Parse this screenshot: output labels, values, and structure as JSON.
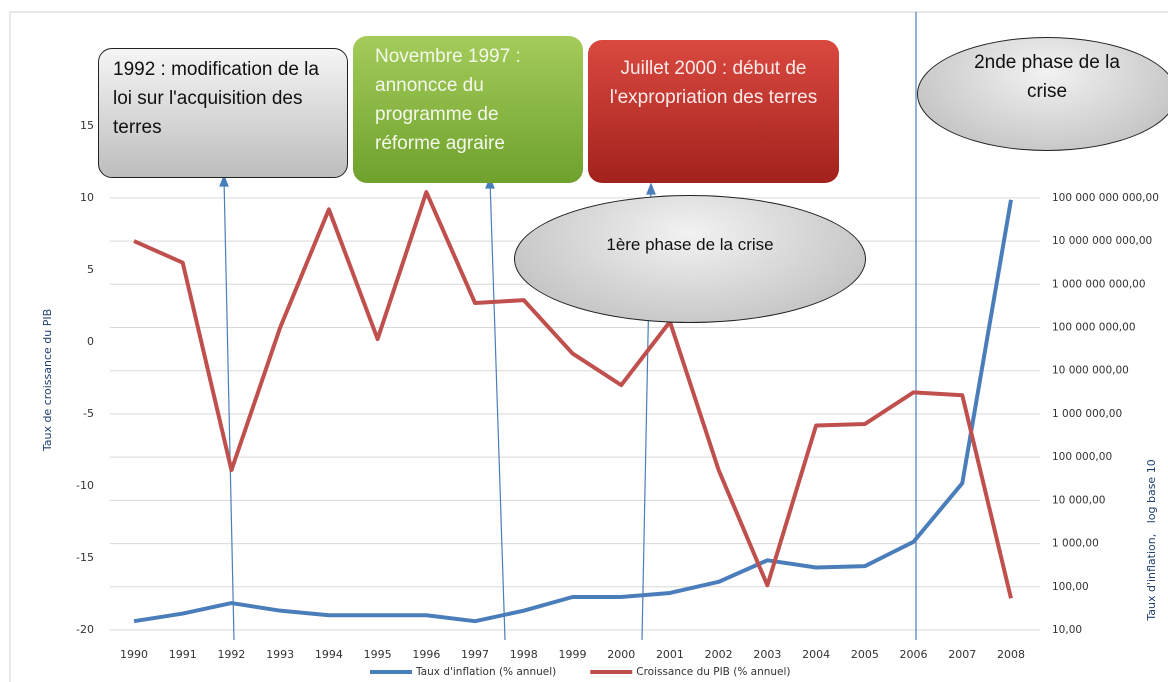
{
  "chart_data": {
    "type": "line",
    "categories": [
      "1990",
      "1991",
      "1992",
      "1993",
      "1994",
      "1995",
      "1996",
      "1997",
      "1998",
      "1999",
      "2000",
      "2001",
      "2002",
      "2003",
      "2004",
      "2005",
      "2006",
      "2007",
      "2008"
    ],
    "series": [
      {
        "name": "Taux d'inflation (% annuel)",
        "color": "#4a7ebb",
        "axis": "y2",
        "values": [
          16,
          24,
          42,
          28,
          22,
          22,
          22,
          16,
          28,
          58,
          58,
          72,
          130,
          410,
          280,
          300,
          1100,
          25000,
          90000000000
        ]
      },
      {
        "name": "Croissance du PIB (% annuel)",
        "color": "#c0504d",
        "values": [
          7.0,
          5.5,
          -8.9,
          1.0,
          9.2,
          0.2,
          10.4,
          2.7,
          2.9,
          -0.8,
          -3.0,
          1.4,
          -8.9,
          -16.9,
          -5.8,
          -5.7,
          -3.5,
          -3.7,
          -17.8
        ]
      }
    ],
    "ylabel": "Taux de croissance du PIB",
    "y2label": "Taux d'inflation,   log base 10",
    "ylim": [
      -20,
      22
    ],
    "yticks": [
      -20,
      -15,
      -10,
      -5,
      0,
      5,
      10,
      15
    ],
    "y2lim": [
      10,
      1000000000000000
    ],
    "y2log": true,
    "y2ticks": [
      {
        "value": 10,
        "label": "10,00"
      },
      {
        "value": 100,
        "label": "100,00"
      },
      {
        "value": 1000,
        "label": "1 000,00"
      },
      {
        "value": 10000,
        "label": "10 000,00"
      },
      {
        "value": 100000,
        "label": "100 000,00"
      },
      {
        "value": 1000000,
        "label": "1 000 000,00"
      },
      {
        "value": 10000000,
        "label": "10 000 000,00"
      },
      {
        "value": 100000000,
        "label": "100 000 000,00"
      },
      {
        "value": 1000000000,
        "label": "1 000 000 000,00"
      },
      {
        "value": 10000000000,
        "label": "10 000 000 000,00"
      },
      {
        "value": 100000000000,
        "label": "100 000 000 000,00"
      }
    ],
    "grid": true,
    "legend": "bottom",
    "annotations": [
      {
        "text": "1992 : modification de la loi sur l'acquisition des terres"
      },
      {
        "text": "Novembre 1997 : annoncce du programme de réforme agraire"
      },
      {
        "text": "Juillet 2000 : début de l'expropriation des terres"
      },
      {
        "text": "2nde phase de la crise"
      },
      {
        "text": "1ère phase de la crise"
      }
    ]
  }
}
